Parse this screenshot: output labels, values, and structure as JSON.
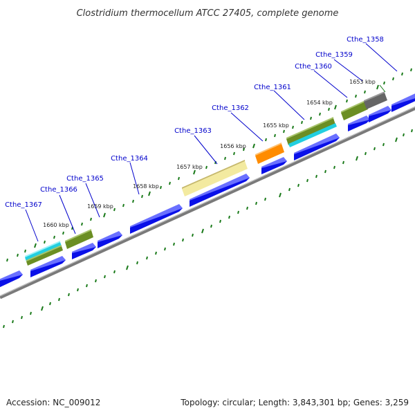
{
  "title": "Clostridium thermocellum ATCC 27405, complete genome",
  "footer": {
    "accession": "Accession: NC_009012",
    "summary": "Topology: circular; Length: 3,843,301 bp; Genes: 3,259"
  },
  "gene_labels": [
    "Cthe_1358",
    "Cthe_1359",
    "Cthe_1360",
    "Cthe_1361",
    "Cthe_1362",
    "Cthe_1363",
    "Cthe_1364",
    "Cthe_1365",
    "Cthe_1366",
    "Cthe_1367"
  ],
  "kbp_labels": [
    "1653 kbp",
    "1654 kbp",
    "1655 kbp",
    "1656 kbp",
    "1657 kbp",
    "1658 kbp",
    "1659 kbp",
    "1660 kbp"
  ],
  "colors": {
    "forward_blue": "#0a10e8",
    "backbone": "#888888",
    "tick_green": "#1a7a1a",
    "label_blue": "#0000cc",
    "olive": "#6b8e23",
    "cyan": "#22cfe0",
    "orange": "#ff8c00",
    "pale_yellow": "#f3eaa0",
    "gray": "#666666"
  }
}
